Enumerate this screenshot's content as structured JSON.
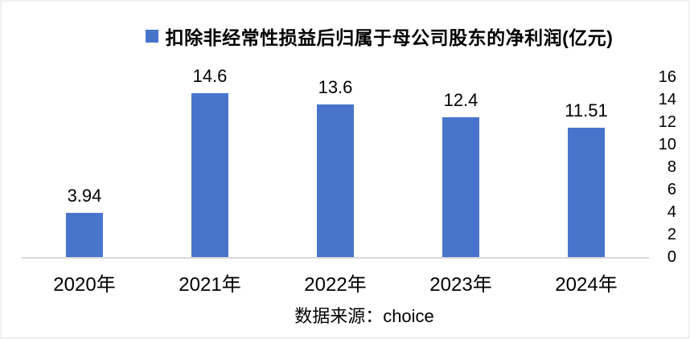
{
  "legend": {
    "label": "扣除非经常性损益后归属于母公司股东的净利润(亿元)"
  },
  "source_note": "数据来源：choice",
  "chart_data": {
    "type": "bar",
    "title": "扣除非经常性损益后归属于母公司股东的净利润(亿元)",
    "categories": [
      "2020年",
      "2021年",
      "2022年",
      "2023年",
      "2024年"
    ],
    "values": [
      3.94,
      14.6,
      13.6,
      12.4,
      11.51
    ],
    "value_labels": [
      "3.94",
      "14.6",
      "13.6",
      "12.4",
      "11.51"
    ],
    "y_ticks": [
      0,
      2,
      4,
      6,
      8,
      10,
      12,
      14,
      16
    ],
    "ylim": [
      0,
      16
    ],
    "yaxis_side": "right",
    "grid": false,
    "legend_position": "top-center",
    "bar_color": "#4875CB",
    "axis_line_color": "#d9d9d9",
    "text_color": "#000000",
    "xlabel": "",
    "ylabel": "",
    "source": "数据来源：choice"
  }
}
